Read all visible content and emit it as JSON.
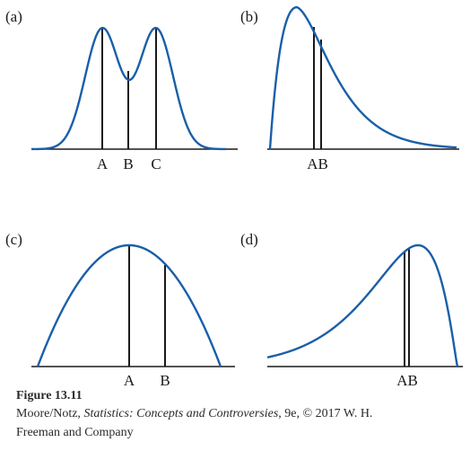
{
  "panels": [
    {
      "id": "a",
      "tag": "(a)",
      "markers": [
        {
          "label": "A"
        },
        {
          "label": "B"
        },
        {
          "label": "C"
        }
      ]
    },
    {
      "id": "b",
      "tag": "(b)",
      "markers": [
        {
          "label": "AB"
        }
      ]
    },
    {
      "id": "c",
      "tag": "(c)",
      "markers": [
        {
          "label": "A"
        },
        {
          "label": "B"
        }
      ]
    },
    {
      "id": "d",
      "tag": "(d)",
      "markers": [
        {
          "label": "AB"
        }
      ]
    }
  ],
  "caption": {
    "title": "Figure 13.11",
    "credit_prefix": "Moore/Notz, ",
    "credit_book": "Statistics: Concepts and Controversies",
    "credit_suffix": ", 9e, © 2017 W. H.",
    "credit_line2": "Freeman and Company"
  },
  "colors": {
    "curve": "#1a5fa8",
    "ink": "#1a1a1a"
  }
}
